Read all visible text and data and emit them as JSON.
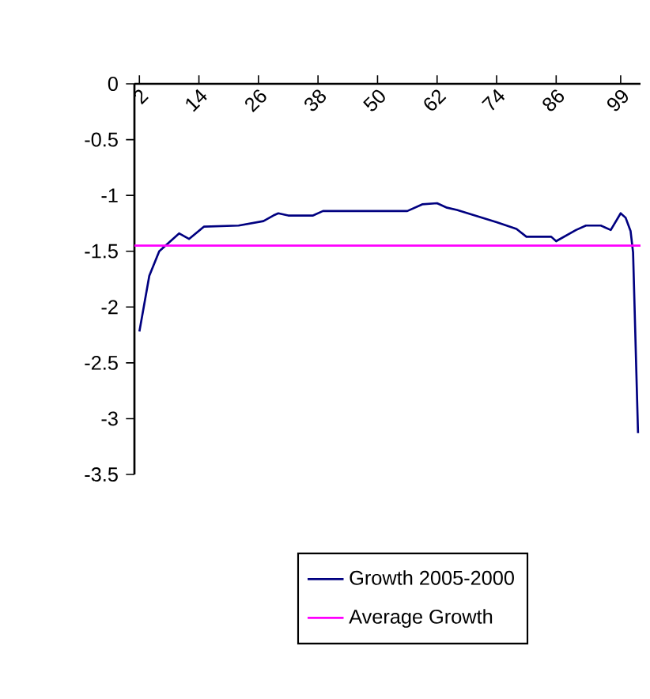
{
  "chart_data": {
    "type": "line",
    "xlim": [
      1,
      103
    ],
    "ylim": [
      -3.5,
      0
    ],
    "xticks": [
      2,
      14,
      26,
      38,
      50,
      62,
      74,
      86,
      99
    ],
    "yticks": [
      0,
      -0.5,
      -1,
      -1.5,
      -2,
      -2.5,
      -3,
      -3.5
    ],
    "grid": false,
    "legend": "bottom",
    "marker": "none",
    "line_style": "solid",
    "series": [
      {
        "name": "Growth 2005-2000",
        "color": "#000080",
        "x": [
          2,
          4,
          6,
          10,
          12,
          15,
          22,
          27,
          29,
          30,
          32,
          37,
          39,
          56,
          59,
          62,
          64,
          66,
          74,
          78,
          80,
          85,
          86,
          90,
          92,
          95,
          97,
          99,
          100,
          101,
          101.5,
          102.5
        ],
        "values": [
          -2.22,
          -1.72,
          -1.5,
          -1.34,
          -1.39,
          -1.28,
          -1.27,
          -1.23,
          -1.18,
          -1.16,
          -1.18,
          -1.18,
          -1.14,
          -1.14,
          -1.08,
          -1.07,
          -1.11,
          -1.13,
          -1.24,
          -1.3,
          -1.37,
          -1.37,
          -1.41,
          -1.31,
          -1.27,
          -1.27,
          -1.31,
          -1.16,
          -1.2,
          -1.32,
          -1.51,
          -3.13
        ]
      },
      {
        "name": "Average Growth",
        "color": "#ff00ff",
        "x": [
          1,
          103
        ],
        "values": [
          -1.45,
          -1.45
        ]
      }
    ]
  }
}
